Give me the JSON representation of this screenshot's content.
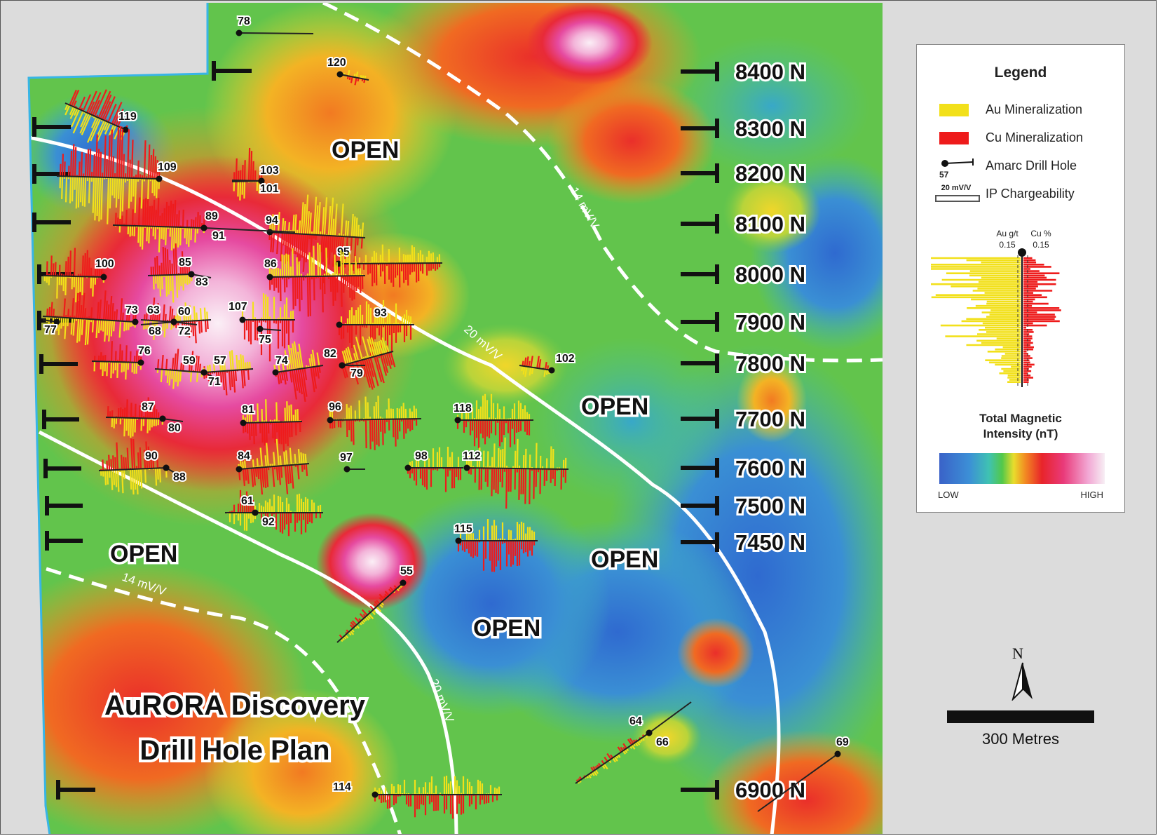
{
  "map": {
    "title_line1": "AuRORA Discovery",
    "title_line2": "Drill Hole Plan",
    "open_labels": [
      "OPEN",
      "OPEN",
      "OPEN",
      "OPEN",
      "OPEN"
    ],
    "contour_labels": [
      "14 mV/V",
      "20 mV/V",
      "14 mV/V",
      "20 mV/V"
    ],
    "northings": [
      "8400 N",
      "8300 N",
      "8200 N",
      "8100 N",
      "8000 N",
      "7900 N",
      "7800 N",
      "7700 N",
      "7600 N",
      "7500 N",
      "7450 N",
      "6900 N"
    ],
    "drill_holes": [
      "78",
      "120",
      "119",
      "109",
      "103",
      "101",
      "89",
      "94",
      "91",
      "95",
      "100",
      "85",
      "86",
      "83",
      "73",
      "63",
      "60",
      "107",
      "77",
      "68",
      "72",
      "93",
      "75",
      "76",
      "82",
      "74",
      "79",
      "59",
      "57",
      "71",
      "102",
      "118",
      "87",
      "81",
      "96",
      "80",
      "90",
      "84",
      "97",
      "98",
      "112",
      "88",
      "61",
      "92",
      "115",
      "55",
      "64",
      "66",
      "69",
      "114"
    ]
  },
  "legend": {
    "title": "Legend",
    "au_label": "Au Mineralization",
    "cu_label": "Cu Mineralization",
    "drill_hole_label": "Amarc Drill Hole",
    "drill_hole_example": "57",
    "ip_label": "IP Chargeability",
    "ip_example": "20 mV/V",
    "au_axis_label": "Au g/t",
    "au_axis_value": "0.15",
    "cu_axis_label": "Cu %",
    "cu_axis_value": "0.15",
    "mag_title_line1": "Total Magnetic",
    "mag_title_line2": "Intensity (nT)",
    "low": "LOW",
    "high": "HIGH",
    "colors": {
      "au": "#f2e01a",
      "cu": "#ee1b1b"
    }
  },
  "scale": {
    "north": "N",
    "scale_text": "300 Metres"
  }
}
